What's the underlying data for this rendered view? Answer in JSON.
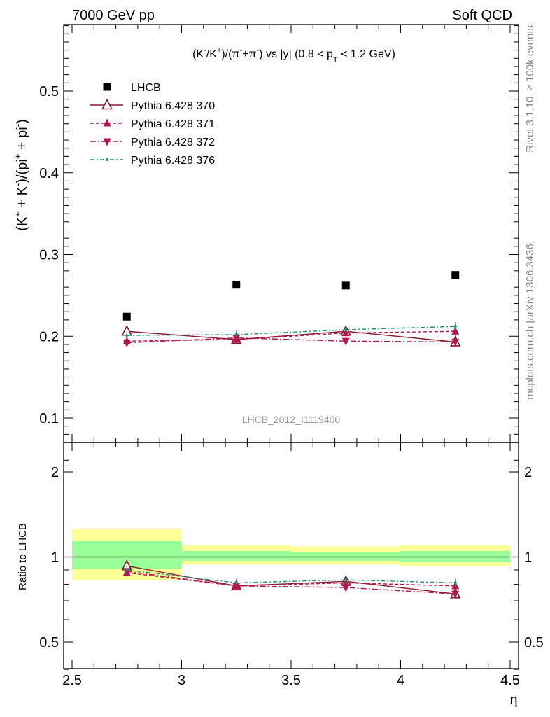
{
  "header": {
    "left": "7000 GeV pp",
    "right": "Soft QCD"
  },
  "side_labels": {
    "rivet": "Rivet 3.1.10, ≥ 100k events",
    "mcplots": "mcplots.cern.ch [arXiv:1306.3436]"
  },
  "watermark": "LHCB_2012_I1119400",
  "chart_data": [
    {
      "type": "scatter",
      "title": "(K⁻/K⁺)/(π⁻+π⁻) vs |y| (0.8 < p_T < 1.2 GeV)",
      "xlabel": "η",
      "ylabel": "(K⁺ + K⁻)/(pi⁺ + pi⁻)",
      "xlim": [
        2.5,
        4.5
      ],
      "ylim": [
        0.07,
        0.58
      ],
      "x": [
        2.75,
        3.25,
        3.75,
        4.25
      ],
      "yticks": [
        "0.1",
        "0.2",
        "0.3",
        "0.4",
        "0.5"
      ],
      "legend_position": "top-left",
      "series": [
        {
          "name": "LHCB",
          "values": [
            0.224,
            0.263,
            0.262,
            0.275
          ],
          "color": "#000000",
          "marker": "square"
        },
        {
          "name": "Pythia 6.428 370",
          "values": [
            0.206,
            0.196,
            0.206,
            0.193
          ],
          "color": "#8b1a2a",
          "marker": "triangle-up-open",
          "dash": ""
        },
        {
          "name": "Pythia 6.428 371",
          "values": [
            0.194,
            0.196,
            0.204,
            0.206
          ],
          "color": "#b0174e",
          "marker": "triangle-up",
          "dash": "5,3"
        },
        {
          "name": "Pythia 6.428 372",
          "values": [
            0.192,
            0.198,
            0.194,
            0.193
          ],
          "color": "#b0174e",
          "marker": "triangle-down",
          "dash": "8,3,2,3"
        },
        {
          "name": "Pythia 6.428 376",
          "values": [
            0.201,
            0.202,
            0.208,
            0.212
          ],
          "color": "#1f8f7a",
          "marker": "dot",
          "dash": "6,3,2,3"
        }
      ]
    },
    {
      "type": "scatter",
      "ylabel": "Ratio to LHCB",
      "xlabel": "η",
      "xlim": [
        2.5,
        4.5
      ],
      "ylim": [
        0.35,
        2.3
      ],
      "log_y": true,
      "xticks": [
        "2.5",
        "3",
        "3.5",
        "4",
        "4.5"
      ],
      "yticks": [
        "0.5",
        "1",
        "2"
      ],
      "bands": [
        {
          "x_range": [
            2.5,
            3.0
          ],
          "inner": [
            0.91,
            1.14
          ],
          "outer": [
            0.83,
            1.26
          ]
        },
        {
          "x_range": [
            3.0,
            3.5
          ],
          "inner": [
            0.97,
            1.05
          ],
          "outer": [
            0.94,
            1.1
          ]
        },
        {
          "x_range": [
            3.5,
            4.0
          ],
          "inner": [
            0.97,
            1.04
          ],
          "outer": [
            0.94,
            1.09
          ]
        },
        {
          "x_range": [
            4.0,
            4.5
          ],
          "inner": [
            0.96,
            1.05
          ],
          "outer": [
            0.93,
            1.1
          ]
        }
      ],
      "band_colors": {
        "inner": "#99ff99",
        "outer": "#ffff99"
      },
      "x": [
        2.75,
        3.25,
        3.75,
        4.25
      ],
      "series": [
        {
          "name": "Pythia 6.428 370",
          "values": [
            0.93,
            0.79,
            0.82,
            0.74
          ],
          "color": "#8b1a2a",
          "marker": "triangle-up-open",
          "dash": ""
        },
        {
          "name": "Pythia 6.428 371",
          "values": [
            0.88,
            0.79,
            0.81,
            0.79
          ],
          "color": "#b0174e",
          "marker": "triangle-up",
          "dash": "5,3"
        },
        {
          "name": "Pythia 6.428 372",
          "values": [
            0.89,
            0.79,
            0.78,
            0.74
          ],
          "color": "#b0174e",
          "marker": "triangle-down",
          "dash": "8,3,2,3"
        },
        {
          "name": "Pythia 6.428 376",
          "values": [
            0.9,
            0.81,
            0.83,
            0.81
          ],
          "color": "#1f8f7a",
          "marker": "dot",
          "dash": "6,3,2,3"
        }
      ]
    }
  ]
}
